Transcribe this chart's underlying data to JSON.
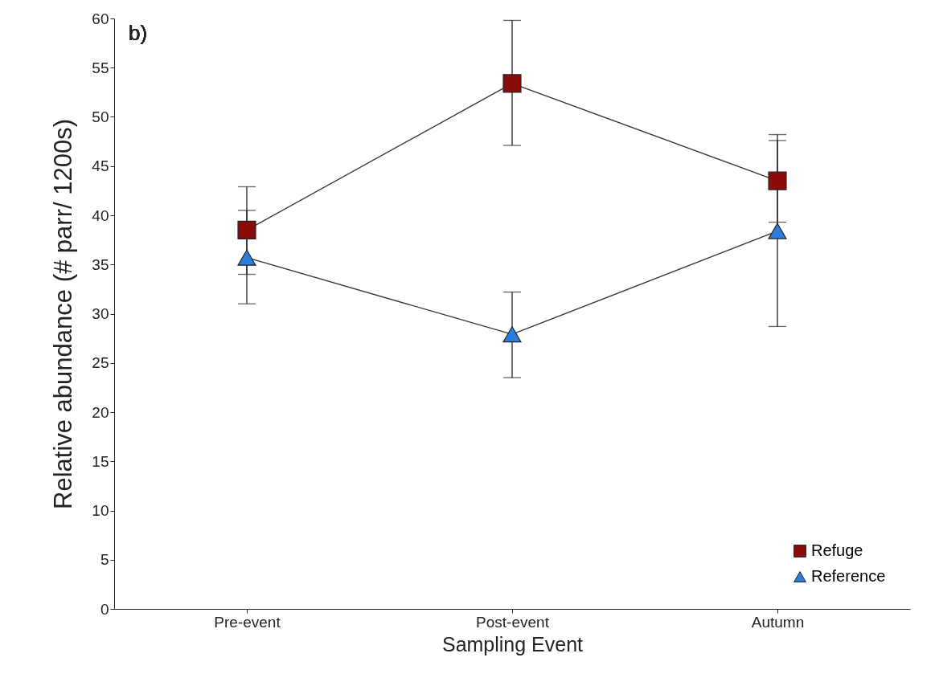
{
  "chart_data": {
    "type": "line",
    "xlabel": "Sampling Event",
    "ylabel": "Relative abundance (# parr/ 1200s)",
    "annotations": [
      "b)"
    ],
    "categories": [
      "Pre-event",
      "Post-event",
      "Autumn"
    ],
    "series": [
      {
        "name": "Refuge",
        "color": "#8b0a0a",
        "marker": "square",
        "values": [
          38.5,
          53.4,
          43.5
        ],
        "errors": [
          [
            34.0,
            42.9
          ],
          [
            47.1,
            59.8
          ],
          [
            39.3,
            48.2
          ]
        ]
      },
      {
        "name": "Reference",
        "color": "#2b7fdc",
        "marker": "triangle",
        "values": [
          35.7,
          27.9,
          38.4
        ],
        "errors": [
          [
            31.0,
            40.5
          ],
          [
            23.5,
            32.2
          ],
          [
            28.7,
            47.6
          ]
        ]
      }
    ],
    "ylim": [
      0,
      60
    ],
    "yticks": [
      0,
      5,
      10,
      15,
      20,
      25,
      30,
      35,
      40,
      45,
      50,
      55,
      60
    ],
    "grid": false,
    "legend": "bottom right",
    "line_style": "solid"
  }
}
